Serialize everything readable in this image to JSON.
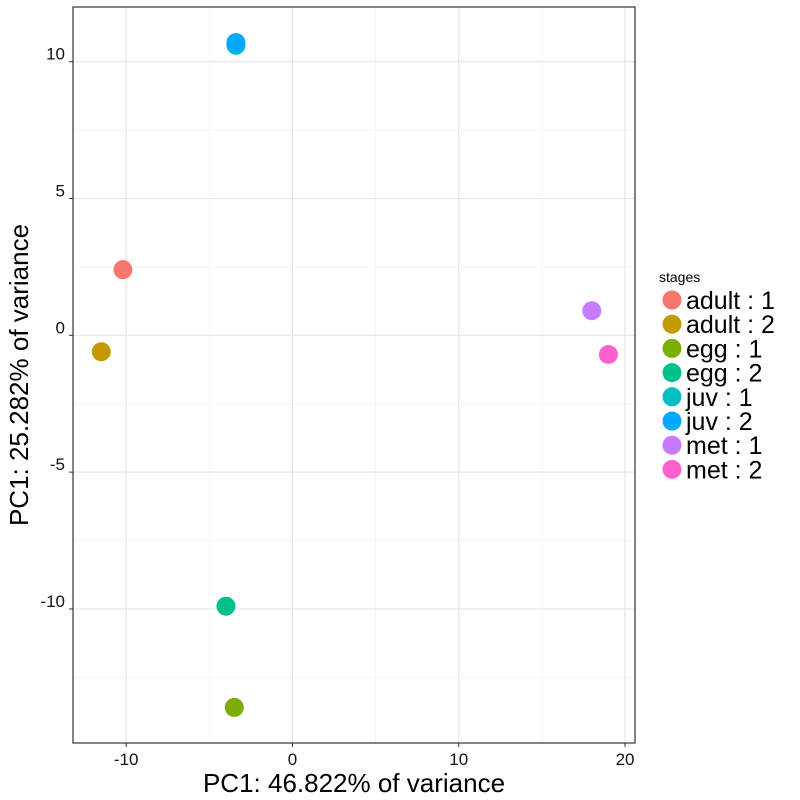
{
  "chart_data": {
    "type": "scatter",
    "title": "",
    "xlabel": "PC1: 46.822% of variance",
    "ylabel": "PC1: 25.282% of variance",
    "xlim": [
      -13.2,
      20.6
    ],
    "ylim": [
      -14.9,
      12.0
    ],
    "x_ticks": [
      -10,
      0,
      10,
      20
    ],
    "y_ticks": [
      -10,
      -5,
      0,
      5,
      10
    ],
    "x_tick_labels": [
      "-10",
      "0",
      "10",
      "20"
    ],
    "y_tick_labels": [
      "-10",
      "-5",
      "0",
      "5",
      "10"
    ],
    "grid": true,
    "legend": {
      "title": "stages",
      "position": "right"
    },
    "series": [
      {
        "name": "adult : 1",
        "color": "#F8766D",
        "points": [
          {
            "x": -10.2,
            "y": 2.4
          }
        ]
      },
      {
        "name": "adult : 2",
        "color": "#C49A00",
        "points": [
          {
            "x": -11.5,
            "y": -0.6
          }
        ]
      },
      {
        "name": "egg : 1",
        "color": "#7CAE00",
        "points": [
          {
            "x": -3.5,
            "y": -13.6
          }
        ]
      },
      {
        "name": "egg : 2",
        "color": "#00C08B",
        "points": [
          {
            "x": -4.0,
            "y": -9.9
          }
        ]
      },
      {
        "name": "juv : 1",
        "color": "#00BFC4",
        "points": [
          {
            "x": -3.4,
            "y": 10.6
          }
        ]
      },
      {
        "name": "juv : 2",
        "color": "#00A9FF",
        "points": [
          {
            "x": -3.4,
            "y": 10.7
          }
        ]
      },
      {
        "name": "met : 1",
        "color": "#C77CFF",
        "points": [
          {
            "x": 18.0,
            "y": 0.9
          }
        ]
      },
      {
        "name": "met : 2",
        "color": "#FF61CC",
        "points": [
          {
            "x": 19.0,
            "y": -0.7
          }
        ]
      }
    ]
  }
}
